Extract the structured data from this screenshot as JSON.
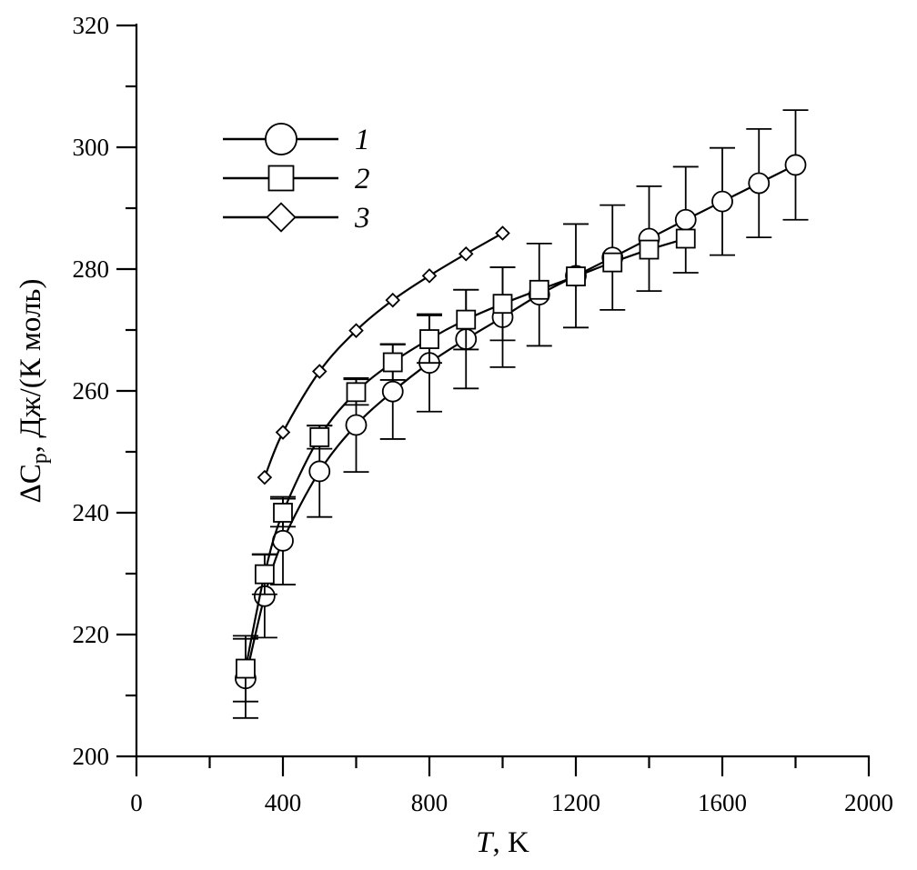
{
  "chart_data": {
    "type": "line",
    "title": "",
    "xlabel": "T",
    "xlabel_suffix": ", K",
    "ylabel": "ΔC",
    "ylabel_sub": "p",
    "ylabel_suffix": ", Дж/(К моль)",
    "xlim": [
      0,
      2000
    ],
    "ylim": [
      200,
      320
    ],
    "x_ticks": [
      0,
      400,
      800,
      1200,
      1600,
      2000
    ],
    "y_ticks": [
      200,
      220,
      240,
      260,
      280,
      300,
      320
    ],
    "grid": false,
    "legend_position": "top-left",
    "series": [
      {
        "name": "1",
        "marker": "circle",
        "x": [
          298,
          350,
          400,
          500,
          600,
          700,
          800,
          900,
          1000,
          1100,
          1200,
          1300,
          1400,
          1500,
          1600,
          1700,
          1800
        ],
        "y": [
          212.8,
          226.3,
          235.4,
          246.8,
          254.4,
          259.9,
          264.6,
          268.5,
          272.1,
          275.8,
          278.9,
          281.9,
          285.0,
          288.1,
          291.1,
          294.1,
          297.1
        ],
        "error": [
          6.5,
          6.8,
          7.2,
          7.5,
          7.7,
          7.8,
          8.0,
          8.1,
          8.2,
          8.4,
          8.5,
          8.6,
          8.6,
          8.7,
          8.8,
          8.9,
          9.0
        ]
      },
      {
        "name": "2",
        "marker": "square",
        "x": [
          298,
          350,
          400,
          500,
          600,
          700,
          800,
          900,
          1000,
          1100,
          1200,
          1300,
          1400,
          1500
        ],
        "y": [
          214.4,
          229.9,
          240.0,
          252.4,
          259.8,
          264.7,
          268.5,
          271.7,
          274.3,
          276.6,
          278.8,
          281.1,
          283.2,
          285.0
        ],
        "error": [
          5.4,
          3.3,
          2.3,
          1.9,
          2.1,
          2.9,
          3.9,
          4.9,
          6.0,
          0,
          0,
          0,
          0,
          0
        ]
      },
      {
        "name": "3",
        "marker": "diamond",
        "x": [
          350,
          400,
          500,
          600,
          700,
          800,
          900,
          1000
        ],
        "y": [
          245.8,
          253.2,
          263.2,
          269.9,
          274.9,
          278.9,
          282.5,
          285.9
        ],
        "error": []
      }
    ]
  }
}
